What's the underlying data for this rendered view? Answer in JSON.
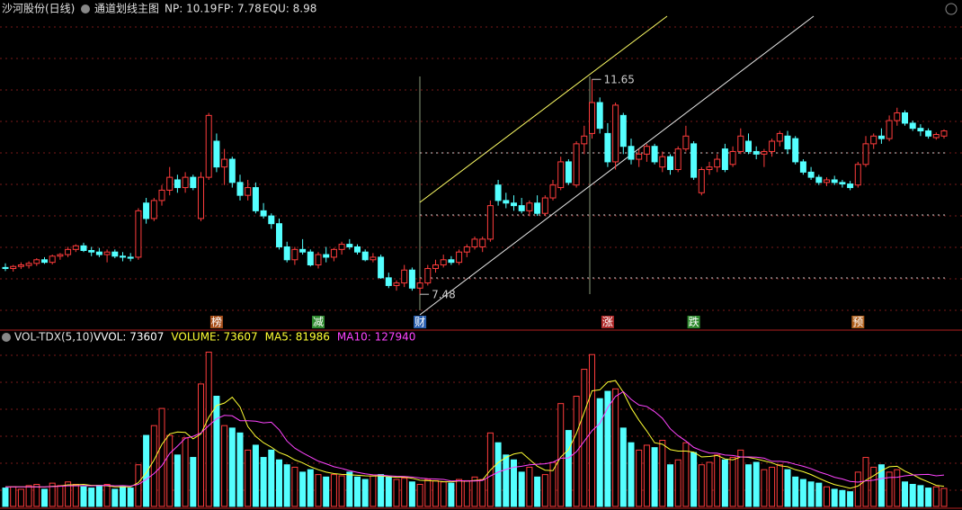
{
  "header": {
    "stock": "沙河股份(日线)",
    "indicator": "通道划线主图",
    "items": [
      "NP: 10.19",
      "FP: 7.78",
      "EQU: 8.98"
    ]
  },
  "chart_data": [
    {
      "type": "candlestick",
      "up_color": "#ff3c3c",
      "down_color": "#54ffff",
      "ylim": [
        6.82,
        13.19
      ],
      "open": [
        8.0,
        7.98,
        8.02,
        8.04,
        8.08,
        8.15,
        8.1,
        8.22,
        8.25,
        8.35,
        8.42,
        8.33,
        8.3,
        8.25,
        8.3,
        8.22,
        8.2,
        8.2,
        9.25,
        8.95,
        9.3,
        9.5,
        9.7,
        9.55,
        9.75,
        8.95,
        9.75,
        10.45,
        9.95,
        10.1,
        9.65,
        9.4,
        9.55,
        9.1,
        9.0,
        8.85,
        8.4,
        8.15,
        8.35,
        8.3,
        8.05,
        8.25,
        8.2,
        8.35,
        8.45,
        8.4,
        8.3,
        8.15,
        8.2,
        7.8,
        7.65,
        7.7,
        7.95,
        7.6,
        7.7,
        7.98,
        8.05,
        8.15,
        8.1,
        8.3,
        8.4,
        8.4,
        8.55,
        9.6,
        9.3,
        9.25,
        9.2,
        9.1,
        9.25,
        9.05,
        9.35,
        9.55,
        10.05,
        9.6,
        10.4,
        10.6,
        11.2,
        10.6,
        10.05,
        10.95,
        10.35,
        10.1,
        10.2,
        10.35,
        9.95,
        10.15,
        9.9,
        10.3,
        10.4,
        9.45,
        9.9,
        9.95,
        10.3,
        10.0,
        10.25,
        10.45,
        10.25,
        10.2,
        10.25,
        10.45,
        10.55,
        10.5,
        10.05,
        9.85,
        9.75,
        9.65,
        9.7,
        9.65,
        9.62,
        9.6,
        10.0,
        10.4,
        10.55,
        10.5,
        10.85,
        11.0,
        10.8,
        10.7,
        10.65,
        10.52,
        10.55
      ],
      "high": [
        8.08,
        8.05,
        8.1,
        8.12,
        8.18,
        8.2,
        8.25,
        8.28,
        8.4,
        8.45,
        8.48,
        8.4,
        8.38,
        8.35,
        8.35,
        8.3,
        8.28,
        9.15,
        9.35,
        9.35,
        9.6,
        9.95,
        9.8,
        9.85,
        9.8,
        9.85,
        11.0,
        10.6,
        10.3,
        10.15,
        9.8,
        9.7,
        9.65,
        9.25,
        9.05,
        8.95,
        8.5,
        8.4,
        8.55,
        8.35,
        8.3,
        8.4,
        8.38,
        8.5,
        8.55,
        8.45,
        8.35,
        8.28,
        8.25,
        7.9,
        7.75,
        8.05,
        8.0,
        7.8,
        8.05,
        8.15,
        8.25,
        8.22,
        8.35,
        8.45,
        8.6,
        8.6,
        9.3,
        9.7,
        9.45,
        9.4,
        9.35,
        9.3,
        9.4,
        9.4,
        9.7,
        10.15,
        10.1,
        10.45,
        10.75,
        11.65,
        11.3,
        10.8,
        11.2,
        11.0,
        10.5,
        10.3,
        10.4,
        10.4,
        10.25,
        10.2,
        10.35,
        10.75,
        10.45,
        9.95,
        10.05,
        10.2,
        10.4,
        10.35,
        10.7,
        10.6,
        10.35,
        10.3,
        10.5,
        10.65,
        10.65,
        10.55,
        10.1,
        9.95,
        9.8,
        9.75,
        9.78,
        9.7,
        9.68,
        10.05,
        10.55,
        10.6,
        10.7,
        10.95,
        11.1,
        11.05,
        10.85,
        10.78,
        10.7,
        10.62,
        10.68
      ],
      "low": [
        7.93,
        7.92,
        7.97,
        7.98,
        8.03,
        8.07,
        8.06,
        8.15,
        8.2,
        8.3,
        8.3,
        8.22,
        8.2,
        8.1,
        8.18,
        8.12,
        8.12,
        8.15,
        8.85,
        8.9,
        9.2,
        9.4,
        9.45,
        9.45,
        9.5,
        8.9,
        9.7,
        9.85,
        9.6,
        9.55,
        9.3,
        9.3,
        9.05,
        8.95,
        8.75,
        8.35,
        8.1,
        8.05,
        8.25,
        8.02,
        7.98,
        8.1,
        8.12,
        8.25,
        8.35,
        8.25,
        8.12,
        8.1,
        7.78,
        7.6,
        7.55,
        7.62,
        7.55,
        7.48,
        7.65,
        7.9,
        8.0,
        8.05,
        8.05,
        8.2,
        8.35,
        8.3,
        8.5,
        9.2,
        9.15,
        9.1,
        9.05,
        9.0,
        9.0,
        9.0,
        9.3,
        9.5,
        9.6,
        9.55,
        10.2,
        10.5,
        10.6,
        9.95,
        9.9,
        10.2,
        10.0,
        9.95,
        10.05,
        10.0,
        9.85,
        9.8,
        9.85,
        10.25,
        9.7,
        9.4,
        9.8,
        9.85,
        9.85,
        9.95,
        10.2,
        10.2,
        10.1,
        9.95,
        10.15,
        10.35,
        10.2,
        10.0,
        9.8,
        9.7,
        9.6,
        9.58,
        9.6,
        9.55,
        9.5,
        9.55,
        9.95,
        10.3,
        10.4,
        10.45,
        10.75,
        10.75,
        10.65,
        10.55,
        10.5,
        10.48,
        10.5
      ],
      "close": [
        7.98,
        8.02,
        8.05,
        8.08,
        8.15,
        8.1,
        8.22,
        8.25,
        8.35,
        8.42,
        8.33,
        8.3,
        8.25,
        8.3,
        8.22,
        8.2,
        8.18,
        9.1,
        8.95,
        9.3,
        9.5,
        9.75,
        9.55,
        9.75,
        9.55,
        9.75,
        10.95,
        9.95,
        10.1,
        9.65,
        9.4,
        9.55,
        9.1,
        9.0,
        8.85,
        8.4,
        8.15,
        8.35,
        8.3,
        8.05,
        8.25,
        8.2,
        8.35,
        8.45,
        8.4,
        8.3,
        8.15,
        8.2,
        7.8,
        7.65,
        7.7,
        7.95,
        7.6,
        7.7,
        7.98,
        8.05,
        8.15,
        8.1,
        8.3,
        8.4,
        8.55,
        8.55,
        9.2,
        9.3,
        9.25,
        9.2,
        9.1,
        9.25,
        9.05,
        9.35,
        9.6,
        10.05,
        9.65,
        10.4,
        10.55,
        11.2,
        10.7,
        10.05,
        11.15,
        10.35,
        10.1,
        10.2,
        10.35,
        10.05,
        10.15,
        9.9,
        10.3,
        10.55,
        9.75,
        9.9,
        9.95,
        10.1,
        9.9,
        10.25,
        10.55,
        10.25,
        10.2,
        10.25,
        10.45,
        10.6,
        10.3,
        10.05,
        9.85,
        9.75,
        9.65,
        9.7,
        9.65,
        9.62,
        9.55,
        10.0,
        10.4,
        10.55,
        10.5,
        10.85,
        11.0,
        10.8,
        10.7,
        10.65,
        10.55,
        10.58,
        10.65
      ],
      "events": [
        null,
        null,
        null,
        null,
        null,
        null,
        null,
        null,
        null,
        null,
        null,
        null,
        null,
        null,
        null,
        null,
        null,
        null,
        null,
        null,
        null,
        null,
        null,
        null,
        null,
        null,
        null,
        {
          "label": "榜",
          "color": "#a8501c"
        },
        null,
        null,
        null,
        null,
        null,
        null,
        null,
        null,
        null,
        null,
        null,
        null,
        {
          "label": "减",
          "color": "#2e8a2e"
        },
        null,
        null,
        null,
        null,
        null,
        null,
        null,
        null,
        null,
        null,
        null,
        null,
        {
          "label": "财",
          "color": "#2a5fb0"
        },
        null,
        null,
        null,
        null,
        null,
        null,
        null,
        null,
        null,
        null,
        null,
        null,
        null,
        null,
        null,
        null,
        null,
        null,
        null,
        null,
        null,
        null,
        null,
        {
          "label": "涨",
          "color": "#b02a2a"
        },
        null,
        null,
        null,
        null,
        null,
        null,
        null,
        null,
        null,
        null,
        {
          "label": "跌",
          "color": "#2e8a2e"
        },
        null,
        null,
        null,
        null,
        null,
        null,
        null,
        null,
        null,
        null,
        null,
        null,
        null,
        null,
        null,
        null,
        null,
        null,
        null,
        null,
        {
          "label": "预",
          "color": "#b0601c"
        },
        null,
        null,
        null,
        null,
        null,
        null,
        null,
        null,
        null,
        null,
        null
      ]
    },
    {
      "type": "volume",
      "title": "VOL-TDX(5,10)",
      "ylim": [
        0,
        720000
      ],
      "legend": [
        {
          "text": "VVOL: 73607",
          "color": "#ffffff"
        },
        {
          "text": "VOLUME: 73607",
          "color": "#ffff33"
        },
        {
          "text": "MA5: 81986",
          "color": "#ffff33"
        },
        {
          "text": "MA10: 127940",
          "color": "#ff44ff"
        }
      ],
      "values": [
        75000,
        80000,
        70000,
        85000,
        90000,
        70000,
        95000,
        85000,
        100000,
        90000,
        80000,
        75000,
        85000,
        90000,
        70000,
        80000,
        75000,
        170000,
        290000,
        330000,
        400000,
        290000,
        210000,
        280000,
        200000,
        500000,
        630000,
        450000,
        330000,
        320000,
        300000,
        230000,
        250000,
        200000,
        230000,
        190000,
        170000,
        160000,
        140000,
        150000,
        130000,
        120000,
        130000,
        125000,
        140000,
        120000,
        110000,
        125000,
        130000,
        120000,
        110000,
        115000,
        100000,
        90000,
        110000,
        105000,
        100000,
        95000,
        110000,
        105000,
        120000,
        110000,
        300000,
        260000,
        210000,
        190000,
        140000,
        160000,
        120000,
        130000,
        180000,
        420000,
        310000,
        450000,
        560000,
        620000,
        440000,
        470000,
        480000,
        320000,
        260000,
        230000,
        250000,
        240000,
        270000,
        170000,
        190000,
        260000,
        220000,
        170000,
        180000,
        210000,
        190000,
        200000,
        230000,
        170000,
        180000,
        150000,
        160000,
        170000,
        150000,
        120000,
        110000,
        100000,
        95000,
        80000,
        70000,
        65000,
        60000,
        140000,
        200000,
        160000,
        170000,
        140000,
        150000,
        100000,
        90000,
        85000,
        75000,
        80000,
        73607
      ],
      "series": [
        {
          "color": "#ffff33",
          "values": [
            80000,
            80000,
            80000,
            80000,
            80000,
            79000,
            82000,
            83000,
            88000,
            88000,
            90000,
            86000,
            86000,
            84000,
            80000,
            80000,
            80000,
            97000,
            137000,
            189000,
            253000,
            296000,
            304000,
            302000,
            276000,
            296000,
            364000,
            412000,
            422000,
            446000,
            406000,
            326000,
            286000,
            260000,
            242000,
            220000,
            208000,
            190000,
            178000,
            162000,
            150000,
            140000,
            134000,
            131000,
            129000,
            127000,
            125000,
            124000,
            125000,
            121000,
            119000,
            120000,
            115000,
            107000,
            105000,
            104000,
            101000,
            100000,
            104000,
            103000,
            106000,
            108000,
            148000,
            179000,
            200000,
            214000,
            220000,
            192000,
            164000,
            148000,
            146000,
            202000,
            232000,
            298000,
            384000,
            472000,
            476000,
            508000,
            514000,
            466000,
            402000,
            352000,
            308000,
            260000,
            254000,
            232000,
            226000,
            226000,
            222000,
            202000,
            204000,
            208000,
            194000,
            190000,
            202000,
            200000,
            194000,
            186000,
            178000,
            166000,
            162000,
            150000,
            142000,
            130000,
            115000,
            101000,
            89000,
            82000,
            74000,
            83000,
            107000,
            125000,
            146000,
            162000,
            164000,
            144000,
            130000,
            113000,
            100000,
            86000,
            81986
          ]
        },
        {
          "color": "#ff44ff",
          "values": [
            80000,
            80000,
            80000,
            80000,
            80000,
            80000,
            81000,
            82000,
            84000,
            84000,
            85000,
            84000,
            85000,
            86000,
            84000,
            85000,
            83000,
            90000,
            110000,
            134000,
            166000,
            216000,
            246000,
            278000,
            286000,
            300000,
            330000,
            358000,
            372000,
            370000,
            350000,
            350000,
            348000,
            341000,
            344000,
            313000,
            267000,
            238000,
            219000,
            202000,
            185000,
            174000,
            162000,
            155000,
            146000,
            139000,
            133000,
            129000,
            128000,
            125000,
            123000,
            122000,
            120000,
            116000,
            113000,
            112000,
            110000,
            104000,
            105000,
            104000,
            104000,
            106000,
            124000,
            140000,
            151000,
            160000,
            164000,
            170000,
            172000,
            174000,
            180000,
            197000,
            198000,
            223000,
            266000,
            309000,
            339000,
            403000,
            449000,
            469000,
            437000,
            414000,
            408000,
            387000,
            360000,
            317000,
            289000,
            267000,
            241000,
            228000,
            218000,
            217000,
            210000,
            208000,
            202000,
            202000,
            201000,
            197000,
            184000,
            184000,
            181000,
            172000,
            164000,
            154000,
            141000,
            131000,
            119000,
            112000,
            102000,
            99000,
            104000,
            107000,
            114000,
            118000,
            119000,
            125000,
            128000,
            130000,
            131000,
            125000,
            127940
          ]
        }
      ]
    }
  ]
}
